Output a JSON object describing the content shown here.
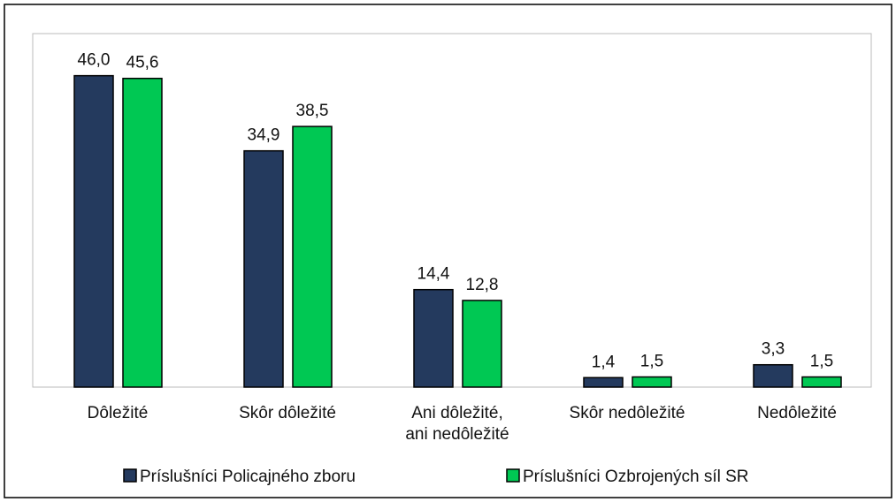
{
  "chart_data": {
    "type": "bar",
    "categories": [
      "Dôležité",
      "Skôr dôležité",
      "Ani dôležité,\nani nedôležité",
      "Skôr nedôležité",
      "Nedôležité"
    ],
    "series": [
      {
        "name": "Príslušníci Policajného zboru",
        "color": "#243a5e",
        "values": [
          46.0,
          34.9,
          14.4,
          1.4,
          3.3
        ],
        "value_labels": [
          "46,0",
          "34,9",
          "14,4",
          "1,4",
          "3,3"
        ]
      },
      {
        "name": "Príslušníci Ozbrojených síl SR",
        "color": "#00c853",
        "values": [
          45.6,
          38.5,
          12.8,
          1.5,
          1.5
        ],
        "value_labels": [
          "45,6",
          "38,5",
          "12,8",
          "1,5",
          "1,5"
        ]
      }
    ],
    "ylim": [
      0,
      50
    ]
  }
}
